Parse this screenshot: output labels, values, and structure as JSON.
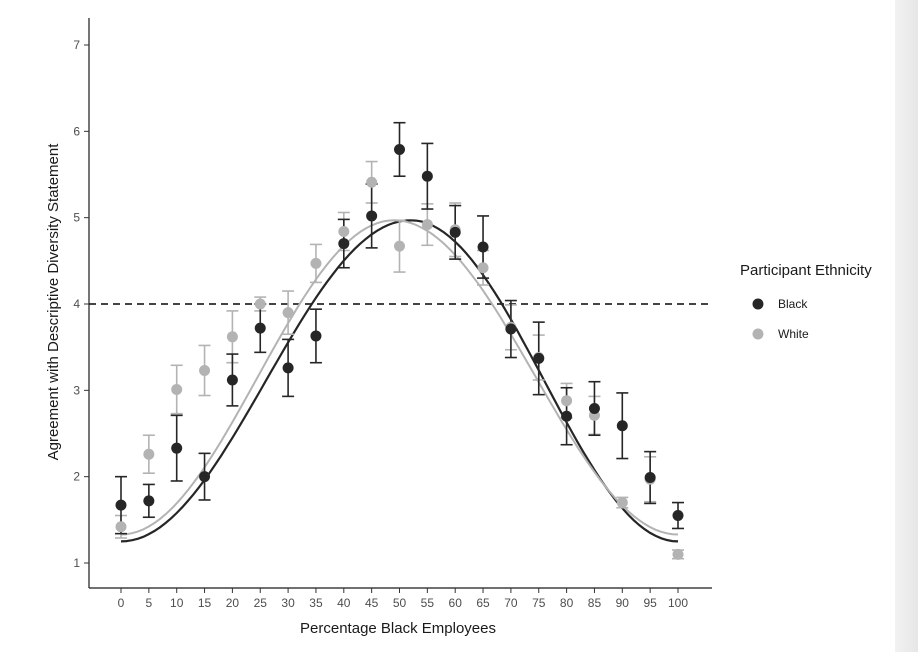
{
  "chart_data": {
    "type": "scatter",
    "title": "",
    "xlabel": "Percentage Black Employees",
    "ylabel": "Agreement with Descriptive Diversity Statement",
    "x_ticks": [
      "0",
      "5",
      "10",
      "15",
      "20",
      "25",
      "30",
      "35",
      "40",
      "45",
      "50",
      "55",
      "60",
      "65",
      "70",
      "75",
      "80",
      "85",
      "90",
      "95",
      "100"
    ],
    "y_ticks": [
      "1",
      "2",
      "3",
      "4",
      "5",
      "6",
      "7"
    ],
    "xlim": [
      -3,
      103
    ],
    "ylim": [
      0.8,
      7.25
    ],
    "grid": false,
    "reference_line": {
      "y": 4,
      "style": "dashed"
    },
    "legend": {
      "title": "Participant Ethnicity",
      "position": "right"
    },
    "series": [
      {
        "name": "Black",
        "color": "#262626",
        "x": [
          0,
          5,
          10,
          15,
          20,
          25,
          30,
          35,
          40,
          45,
          50,
          55,
          60,
          65,
          70,
          75,
          80,
          85,
          90,
          95,
          100
        ],
        "y": [
          1.67,
          1.72,
          2.33,
          2.0,
          3.12,
          3.72,
          3.26,
          3.63,
          4.7,
          5.02,
          5.79,
          5.48,
          4.83,
          4.66,
          3.71,
          3.37,
          2.7,
          2.79,
          2.59,
          1.99,
          1.55
        ],
        "err": [
          0.33,
          0.19,
          0.38,
          0.27,
          0.3,
          0.28,
          0.33,
          0.31,
          0.28,
          0.37,
          0.31,
          0.38,
          0.31,
          0.36,
          0.33,
          0.42,
          0.33,
          0.31,
          0.38,
          0.3,
          0.15
        ],
        "fit": {
          "min": 1.25,
          "max": 4.97,
          "peak_x": 52
        }
      },
      {
        "name": "White",
        "color": "#b3b3b3",
        "x": [
          0,
          5,
          10,
          15,
          20,
          25,
          30,
          35,
          40,
          45,
          50,
          55,
          60,
          65,
          70,
          75,
          80,
          85,
          90,
          95,
          100
        ],
        "y": [
          1.42,
          2.26,
          3.01,
          3.23,
          3.62,
          4.0,
          3.9,
          4.47,
          4.84,
          5.41,
          4.67,
          4.92,
          4.86,
          4.42,
          3.73,
          3.38,
          2.88,
          2.71,
          1.7,
          1.97,
          1.1
        ],
        "err": [
          0.13,
          0.22,
          0.28,
          0.29,
          0.3,
          0.08,
          0.25,
          0.22,
          0.22,
          0.24,
          0.3,
          0.24,
          0.31,
          0.2,
          0.26,
          0.26,
          0.2,
          0.22,
          0.06,
          0.26,
          0.05
        ],
        "fit": {
          "min": 1.33,
          "max": 4.97,
          "peak_x": 49
        }
      }
    ]
  }
}
